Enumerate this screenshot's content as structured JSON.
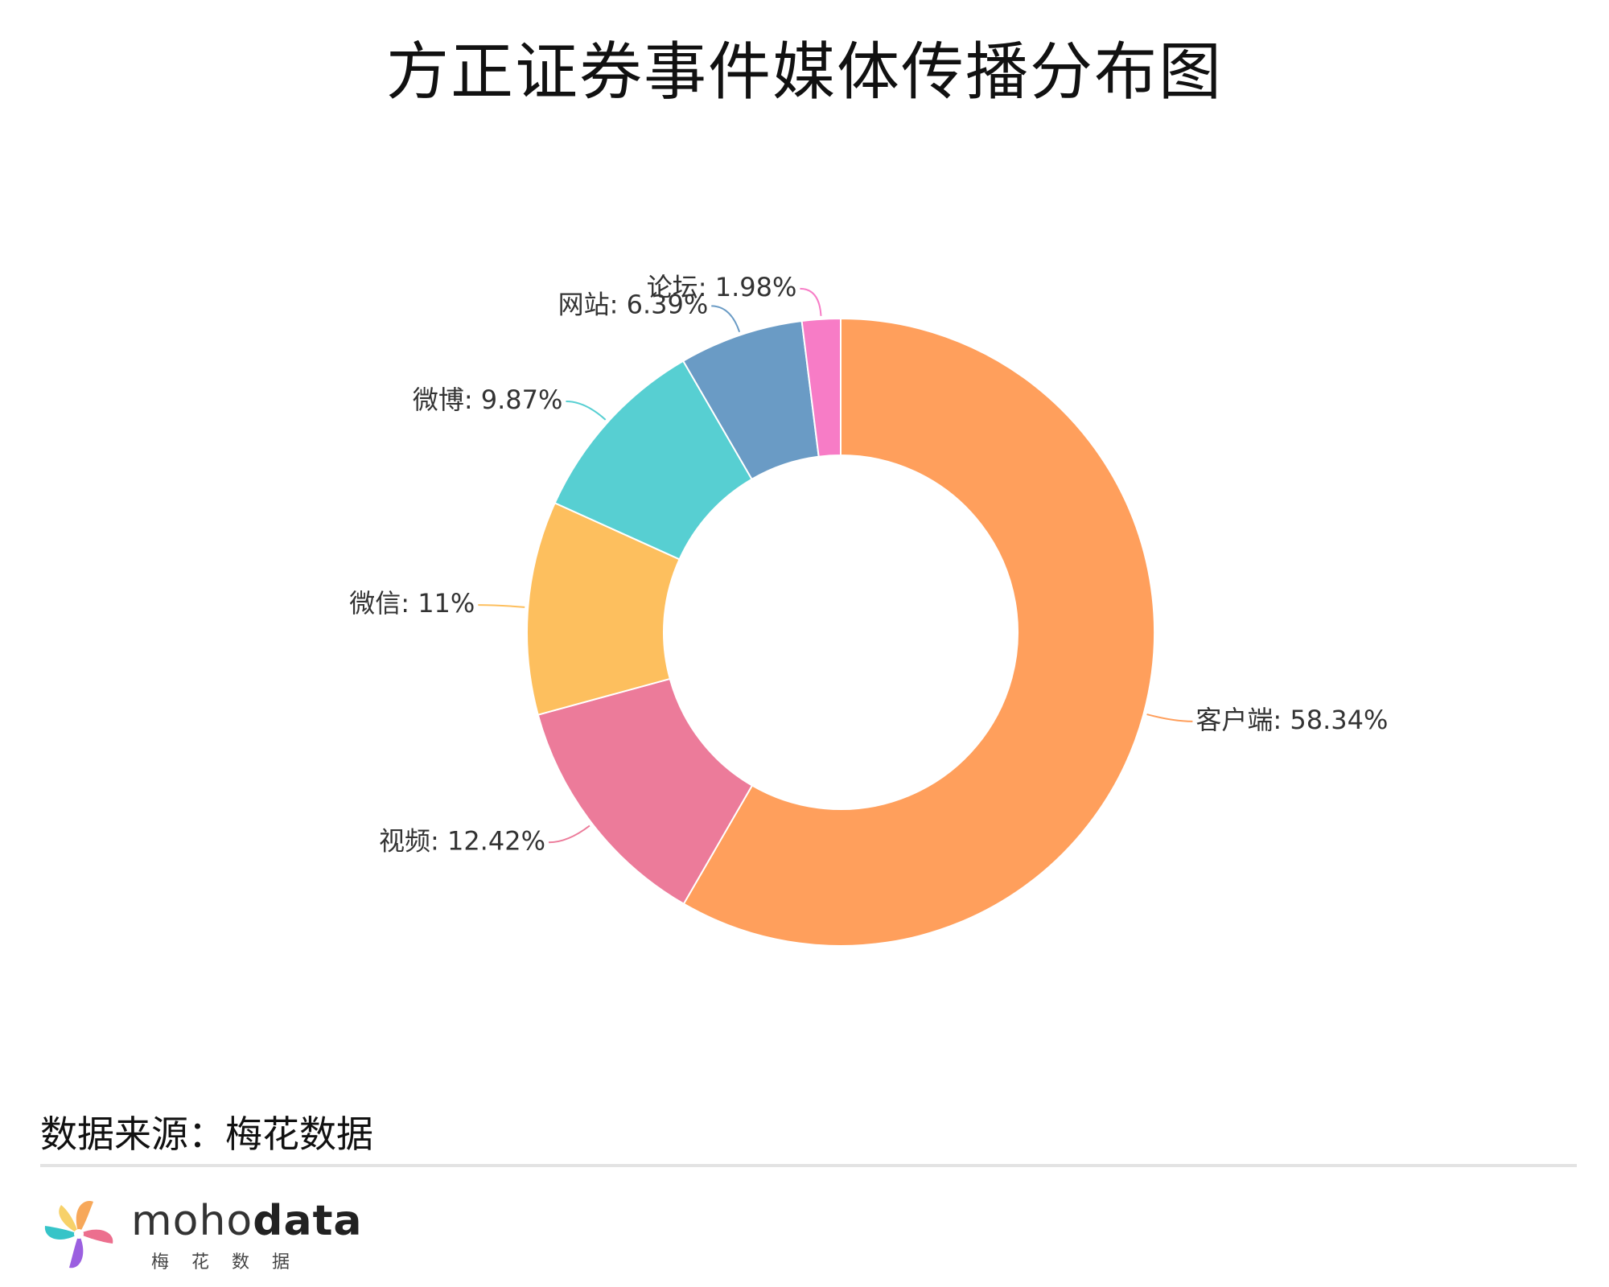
{
  "title": "方正证券事件媒体传播分布图",
  "chart_data": {
    "type": "pie",
    "donut": true,
    "title": "方正证券事件媒体传播分布图",
    "categories": [
      "客户端",
      "视频",
      "微信",
      "微博",
      "网站",
      "论坛"
    ],
    "values": [
      58.34,
      12.42,
      11,
      9.87,
      6.39,
      1.98
    ],
    "labels": [
      "客户端: 58.34%",
      "视频: 12.42%",
      "微信: 11%",
      "微博: 9.87%",
      "网站: 6.39%",
      "论坛: 1.98%"
    ],
    "colors": [
      "#FF9F5C",
      "#EC7B9A",
      "#FDBF5E",
      "#57CFD2",
      "#6A9BC5",
      "#F77CC6"
    ],
    "start": "top",
    "direction": "clockwise"
  },
  "source": "数据来源：梅花数据",
  "brand": {
    "name_light": "moho",
    "name_bold": "data",
    "subtitle": "梅花数据"
  }
}
